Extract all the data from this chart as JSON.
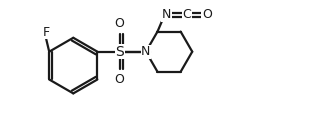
{
  "bg_color": "#ffffff",
  "line_color": "#1a1a1a",
  "text_color": "#1a1a1a",
  "line_width": 1.6,
  "font_size": 8.5,
  "figure_size": [
    3.32,
    1.25
  ],
  "dpi": 100,
  "xlim": [
    0.5,
    9.5
  ],
  "ylim": [
    0.2,
    4.2
  ]
}
